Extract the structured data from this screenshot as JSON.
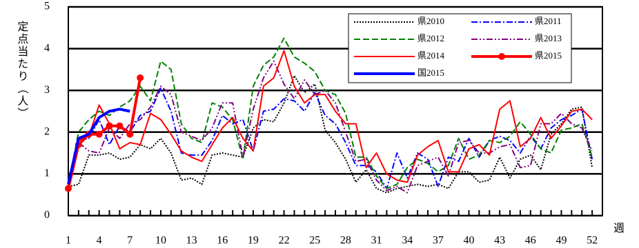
{
  "chart_data": {
    "type": "line",
    "y_label": "定点当たり（人）",
    "x_label": "週",
    "x": [
      1,
      2,
      3,
      4,
      5,
      6,
      7,
      8,
      9,
      10,
      11,
      12,
      13,
      14,
      15,
      16,
      17,
      18,
      19,
      20,
      21,
      22,
      23,
      24,
      25,
      26,
      27,
      28,
      29,
      30,
      31,
      32,
      33,
      34,
      35,
      36,
      37,
      38,
      39,
      40,
      41,
      42,
      43,
      44,
      45,
      46,
      47,
      48,
      49,
      50,
      51,
      52
    ],
    "xlim": [
      1,
      53
    ],
    "xticks": [
      1,
      4,
      7,
      10,
      13,
      16,
      19,
      22,
      25,
      28,
      31,
      34,
      37,
      40,
      43,
      46,
      49,
      52
    ],
    "ylim": [
      0,
      5
    ],
    "yticks": [
      0,
      1,
      2,
      3,
      4,
      5
    ],
    "grid": true,
    "legend": "upper right",
    "series": [
      {
        "name": "県2010",
        "color": "#000000",
        "style": "dotted",
        "weight": "thin",
        "values": [
          0.7,
          0.75,
          1.45,
          1.45,
          1.5,
          1.35,
          1.4,
          1.7,
          1.6,
          1.85,
          1.5,
          0.85,
          0.9,
          0.75,
          1.45,
          1.5,
          1.45,
          1.4,
          2.1,
          2.3,
          2.25,
          2.7,
          3.35,
          2.95,
          3.15,
          2.05,
          1.75,
          1.35,
          0.8,
          1.1,
          0.65,
          0.55,
          0.65,
          0.7,
          0.75,
          0.7,
          0.75,
          0.65,
          1.05,
          1.05,
          0.8,
          0.85,
          1.4,
          0.9,
          1.35,
          1.45,
          1.1,
          1.95,
          2.2,
          2.55,
          2.6,
          1.15
        ]
      },
      {
        "name": "県2011",
        "color": "#0000ff",
        "style": "dashdot",
        "weight": "thin",
        "values": [
          0.75,
          1.8,
          1.85,
          2.3,
          1.7,
          2.15,
          2.0,
          2.4,
          2.5,
          3.05,
          2.5,
          1.5,
          1.45,
          1.45,
          1.8,
          2.4,
          2.2,
          2.3,
          1.55,
          2.5,
          2.55,
          2.8,
          2.75,
          2.5,
          2.95,
          2.4,
          2.2,
          1.75,
          1.2,
          1.2,
          1.05,
          0.65,
          1.5,
          0.9,
          1.5,
          1.35,
          0.7,
          1.4,
          1.3,
          1.85,
          1.4,
          1.8,
          1.9,
          1.8,
          1.5,
          1.9,
          1.6,
          2.1,
          2.3,
          2.4,
          2.55,
          1.35
        ]
      },
      {
        "name": "県2012",
        "color": "#008000",
        "style": "dashed",
        "weight": "thin",
        "values": [
          0.75,
          2.0,
          2.3,
          2.5,
          2.4,
          2.6,
          2.75,
          3.1,
          2.75,
          3.7,
          3.5,
          2.2,
          1.85,
          1.75,
          2.7,
          2.6,
          2.3,
          1.35,
          3.1,
          3.6,
          3.8,
          4.25,
          3.8,
          3.65,
          3.45,
          3.0,
          2.9,
          2.45,
          1.4,
          1.4,
          0.95,
          0.65,
          0.75,
          1.15,
          1.35,
          1.25,
          1.05,
          1.2,
          1.85,
          1.35,
          1.45,
          1.8,
          1.75,
          1.9,
          2.25,
          1.95,
          1.6,
          1.5,
          2.05,
          2.1,
          2.2,
          1.4
        ]
      },
      {
        "name": "県2013",
        "color": "#800080",
        "style": "dashdotdot",
        "weight": "thin",
        "values": [
          0.7,
          1.75,
          1.55,
          1.5,
          2.1,
          1.85,
          2.2,
          2.3,
          2.6,
          3.1,
          2.9,
          2.0,
          1.9,
          1.8,
          2.1,
          2.7,
          2.7,
          1.4,
          2.55,
          3.3,
          3.7,
          3.15,
          2.8,
          3.25,
          2.9,
          3.0,
          2.7,
          2.0,
          1.3,
          1.35,
          0.85,
          0.6,
          0.7,
          0.55,
          1.2,
          1.3,
          1.4,
          0.95,
          1.75,
          1.8,
          1.5,
          1.5,
          1.65,
          1.7,
          1.15,
          1.2,
          2.2,
          2.2,
          2.45,
          2.2,
          2.1,
          1.55
        ]
      },
      {
        "name": "県2014",
        "color": "#ff0000",
        "style": "solid",
        "weight": "thin",
        "values": [
          0.65,
          1.8,
          1.9,
          2.65,
          2.2,
          1.6,
          1.75,
          1.7,
          2.45,
          2.3,
          1.95,
          1.55,
          1.4,
          1.3,
          1.7,
          2.1,
          2.35,
          1.85,
          1.55,
          3.1,
          3.3,
          3.95,
          3.1,
          2.7,
          2.9,
          2.9,
          2.5,
          2.2,
          2.2,
          1.15,
          1.5,
          1.0,
          0.85,
          0.8,
          1.45,
          1.65,
          1.8,
          1.05,
          1.05,
          1.6,
          1.7,
          1.45,
          2.55,
          2.75,
          1.65,
          1.85,
          2.35,
          1.85,
          2.15,
          2.5,
          2.55,
          2.3
        ]
      },
      {
        "name": "県2015",
        "color": "#ff0000",
        "style": "solid",
        "weight": "bold",
        "marker": "circle",
        "values": [
          0.65,
          1.7,
          1.95,
          1.95,
          2.15,
          2.15,
          1.95,
          3.3,
          null,
          null,
          null,
          null,
          null,
          null,
          null,
          null,
          null,
          null,
          null,
          null,
          null,
          null,
          null,
          null,
          null,
          null,
          null,
          null,
          null,
          null,
          null,
          null,
          null,
          null,
          null,
          null,
          null,
          null,
          null,
          null,
          null,
          null,
          null,
          null,
          null,
          null,
          null,
          null,
          null,
          null,
          null,
          null
        ]
      },
      {
        "name": "国2015",
        "color": "#0000ff",
        "style": "solid",
        "weight": "bold",
        "values": [
          0.75,
          1.85,
          1.95,
          2.35,
          2.5,
          2.55,
          2.5,
          null,
          null,
          null,
          null,
          null,
          null,
          null,
          null,
          null,
          null,
          null,
          null,
          null,
          null,
          null,
          null,
          null,
          null,
          null,
          null,
          null,
          null,
          null,
          null,
          null,
          null,
          null,
          null,
          null,
          null,
          null,
          null,
          null,
          null,
          null,
          null,
          null,
          null,
          null,
          null,
          null,
          null,
          null,
          null,
          null
        ]
      }
    ]
  }
}
